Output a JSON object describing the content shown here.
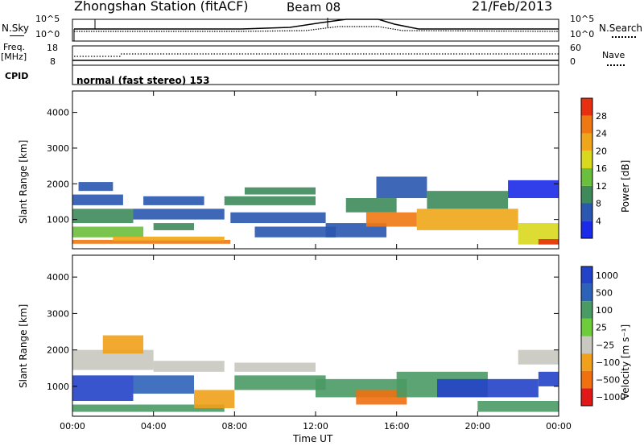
{
  "header": {
    "station": "Zhongshan Station (fitACF)",
    "beam": "Beam 08",
    "date": "21/Feb/2013"
  },
  "panels": {
    "nsky_label": "N.Sky",
    "nsky_ticks": [
      "10^5",
      "10^0"
    ],
    "nsearch_label": "N.Search",
    "nsearch_ticks": [
      "10^5",
      "10^0"
    ],
    "freq_label": "Freq.",
    "freq_unit": "[MHz]",
    "freq_ticks": [
      "18",
      "8"
    ],
    "nave_label": "Nave",
    "nave_ticks": [
      "60",
      "0"
    ],
    "cpid_label": "CPID",
    "cpid_text": "normal (fast stereo) 153"
  },
  "colors": {
    "power": [
      "#1a2ae8",
      "#2a57b0",
      "#3e8a5a",
      "#6abf3c",
      "#d8d81e",
      "#f0a61a",
      "#f07812",
      "#e83010"
    ],
    "velocity": [
      "#2242c8",
      "#2c62b8",
      "#4a9a64",
      "#6ecb3a",
      "#c8c8c0",
      "#f0a01a",
      "#f07010",
      "#e01818"
    ]
  },
  "chart_data": [
    {
      "type": "heatmap",
      "quantity": "power",
      "ylabel": "Slant Range [km]",
      "ylim": [
        180,
        4600
      ],
      "yticks": [
        "1000",
        "2000",
        "3000",
        "4000"
      ],
      "xlim_hours": [
        0,
        24
      ],
      "xticks": [
        "00:00",
        "04:00",
        "08:00",
        "12:00",
        "16:00",
        "20:00",
        "00:00"
      ],
      "colorbar": {
        "label": "Power [dB]",
        "ticks": [
          "4",
          "8",
          "12",
          "16",
          "20",
          "24",
          "28"
        ]
      },
      "patches": [
        {
          "t": [
            0.0,
            2.5
          ],
          "r": [
            1400,
            1700
          ],
          "level": 1
        },
        {
          "t": [
            0.3,
            2.0
          ],
          "r": [
            1800,
            2050
          ],
          "level": 1
        },
        {
          "t": [
            0.0,
            3.0
          ],
          "r": [
            900,
            1300
          ],
          "level": 2
        },
        {
          "t": [
            0.0,
            3.5
          ],
          "r": [
            500,
            800
          ],
          "level": 3
        },
        {
          "t": [
            0.0,
            7.8
          ],
          "r": [
            320,
            430
          ],
          "level": 6
        },
        {
          "t": [
            2.0,
            7.5
          ],
          "r": [
            400,
            520
          ],
          "level": 5
        },
        {
          "t": [
            3.0,
            7.5
          ],
          "r": [
            1000,
            1300
          ],
          "level": 1
        },
        {
          "t": [
            3.5,
            6.5
          ],
          "r": [
            1400,
            1650
          ],
          "level": 1
        },
        {
          "t": [
            4.0,
            6.0
          ],
          "r": [
            700,
            900
          ],
          "level": 2
        },
        {
          "t": [
            7.5,
            12.0
          ],
          "r": [
            1400,
            1650
          ],
          "level": 2
        },
        {
          "t": [
            8.5,
            12.0
          ],
          "r": [
            1700,
            1900
          ],
          "level": 2
        },
        {
          "t": [
            7.8,
            12.5
          ],
          "r": [
            900,
            1200
          ],
          "level": 1
        },
        {
          "t": [
            9.0,
            13.0
          ],
          "r": [
            500,
            800
          ],
          "level": 1
        },
        {
          "t": [
            12.5,
            15.5
          ],
          "r": [
            500,
            900
          ],
          "level": 1
        },
        {
          "t": [
            14.5,
            17.0
          ],
          "r": [
            800,
            1200
          ],
          "level": 6
        },
        {
          "t": [
            13.5,
            16.0
          ],
          "r": [
            1200,
            1600
          ],
          "level": 2
        },
        {
          "t": [
            15.0,
            17.5
          ],
          "r": [
            1600,
            2200
          ],
          "level": 1
        },
        {
          "t": [
            17.0,
            22.0
          ],
          "r": [
            700,
            1300
          ],
          "level": 5
        },
        {
          "t": [
            17.5,
            21.5
          ],
          "r": [
            1300,
            1800
          ],
          "level": 2
        },
        {
          "t": [
            21.5,
            24.0
          ],
          "r": [
            1600,
            2100
          ],
          "level": 0
        },
        {
          "t": [
            22.0,
            24.0
          ],
          "r": [
            300,
            900
          ],
          "level": 4
        },
        {
          "t": [
            23.0,
            24.0
          ],
          "r": [
            300,
            450
          ],
          "level": 7
        }
      ]
    },
    {
      "type": "heatmap",
      "quantity": "velocity",
      "ylabel": "Slant Range [km]",
      "ylim": [
        180,
        4600
      ],
      "yticks": [
        "1000",
        "2000",
        "3000",
        "4000"
      ],
      "xlim_hours": [
        0,
        24
      ],
      "xticks": [
        "00:00",
        "04:00",
        "08:00",
        "12:00",
        "16:00",
        "20:00",
        "00:00"
      ],
      "xlabel": "Time UT",
      "colorbar": {
        "label": "Velocity  [m s⁻¹]",
        "ticks": [
          "1000",
          "500",
          "100",
          "25",
          "−25",
          "−100",
          "−500",
          "−1000"
        ]
      },
      "patches": [
        {
          "t": [
            0.0,
            4.0
          ],
          "r": [
            1450,
            2000
          ],
          "level": 4
        },
        {
          "t": [
            1.5,
            3.5
          ],
          "r": [
            1900,
            2400
          ],
          "level": 5
        },
        {
          "t": [
            0.0,
            3.0
          ],
          "r": [
            600,
            1300
          ],
          "level": 0
        },
        {
          "t": [
            0.0,
            7.5
          ],
          "r": [
            300,
            500
          ],
          "level": 2
        },
        {
          "t": [
            3.0,
            6.0
          ],
          "r": [
            800,
            1300
          ],
          "level": 1
        },
        {
          "t": [
            6.0,
            8.0
          ],
          "r": [
            400,
            900
          ],
          "level": 5
        },
        {
          "t": [
            4.0,
            7.5
          ],
          "r": [
            1400,
            1700
          ],
          "level": 4
        },
        {
          "t": [
            8.0,
            12.5
          ],
          "r": [
            900,
            1300
          ],
          "level": 2
        },
        {
          "t": [
            8.0,
            12.0
          ],
          "r": [
            1400,
            1650
          ],
          "level": 4
        },
        {
          "t": [
            12.0,
            16.5
          ],
          "r": [
            700,
            1200
          ],
          "level": 2
        },
        {
          "t": [
            14.0,
            16.5
          ],
          "r": [
            500,
            900
          ],
          "level": 6
        },
        {
          "t": [
            16.0,
            20.5
          ],
          "r": [
            700,
            1400
          ],
          "level": 2
        },
        {
          "t": [
            18.0,
            23.0
          ],
          "r": [
            700,
            1200
          ],
          "level": 0
        },
        {
          "t": [
            20.0,
            24.0
          ],
          "r": [
            300,
            600
          ],
          "level": 2
        },
        {
          "t": [
            22.0,
            24.0
          ],
          "r": [
            1600,
            2000
          ],
          "level": 4
        },
        {
          "t": [
            23.0,
            24.0
          ],
          "r": [
            1000,
            1400
          ],
          "level": 0
        }
      ]
    }
  ]
}
